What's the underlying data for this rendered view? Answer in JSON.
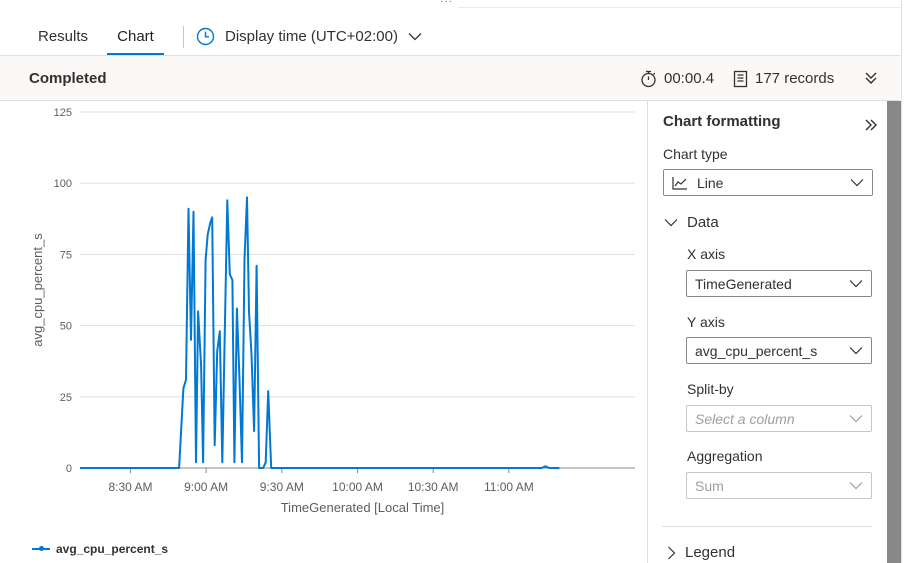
{
  "tabs": {
    "results_label": "Results",
    "chart_label": "Chart",
    "display_time_label": "Display time (UTC+02:00)"
  },
  "status": {
    "label": "Completed",
    "duration": "00:00.4",
    "records": "177 records"
  },
  "panel": {
    "title": "Chart formatting",
    "chart_type_label": "Chart type",
    "chart_type_value": "Line",
    "data_section_label": "Data",
    "x_axis_label": "X axis",
    "x_axis_value": "TimeGenerated",
    "y_axis_label": "Y axis",
    "y_axis_value": "avg_cpu_percent_s",
    "split_by_label": "Split-by",
    "split_by_placeholder": "Select a column",
    "aggregation_label": "Aggregation",
    "aggregation_value": "Sum",
    "legend_section_label": "Legend"
  },
  "colors": {
    "accent": "#0078d4",
    "series": "#0078d4"
  },
  "chart_data": {
    "type": "line",
    "xlabel": "TimeGenerated [Local Time]",
    "ylabel": "avg_cpu_percent_s",
    "ylim": [
      0,
      125
    ],
    "yticks": [
      0,
      25,
      50,
      75,
      100,
      125
    ],
    "xlim_minutes": [
      490,
      710
    ],
    "xticks": [
      {
        "label": "8:30 AM",
        "m": 510
      },
      {
        "label": "9:00 AM",
        "m": 540
      },
      {
        "label": "9:30 AM",
        "m": 570
      },
      {
        "label": "10:00 AM",
        "m": 600
      },
      {
        "label": "10:30 AM",
        "m": 630
      },
      {
        "label": "11:00 AM",
        "m": 660
      }
    ],
    "grid": true,
    "legend": "bottom-left",
    "series": [
      {
        "name": "avg_cpu_percent_s",
        "points": [
          [
            490,
            0
          ],
          [
            519,
            0
          ],
          [
            529.3,
            0
          ],
          [
            531,
            28
          ],
          [
            532,
            31
          ],
          [
            533,
            91
          ],
          [
            534,
            45
          ],
          [
            535,
            90
          ],
          [
            536,
            2
          ],
          [
            536.8,
            55
          ],
          [
            538,
            36
          ],
          [
            538.8,
            2
          ],
          [
            539.8,
            73
          ],
          [
            540.6,
            82
          ],
          [
            541.6,
            86
          ],
          [
            542.4,
            88
          ],
          [
            543.4,
            8
          ],
          [
            544.4,
            41
          ],
          [
            545.4,
            48
          ],
          [
            546.4,
            2
          ],
          [
            548.4,
            94
          ],
          [
            549.4,
            68
          ],
          [
            550.4,
            66
          ],
          [
            551.2,
            2
          ],
          [
            552.2,
            56
          ],
          [
            553.2,
            32
          ],
          [
            554.2,
            2
          ],
          [
            555.2,
            73
          ],
          [
            556.2,
            95
          ],
          [
            557,
            55
          ],
          [
            558,
            40
          ],
          [
            559,
            13
          ],
          [
            560,
            71
          ],
          [
            561,
            0
          ],
          [
            562.6,
            0
          ],
          [
            563.6,
            2
          ],
          [
            564.6,
            27
          ],
          [
            565.8,
            0
          ],
          [
            570,
            0
          ],
          [
            600,
            0
          ],
          [
            630,
            0
          ],
          [
            660,
            0
          ],
          [
            673,
            0
          ],
          [
            674.5,
            0.6
          ],
          [
            676,
            0
          ],
          [
            680,
            0
          ]
        ]
      }
    ]
  }
}
